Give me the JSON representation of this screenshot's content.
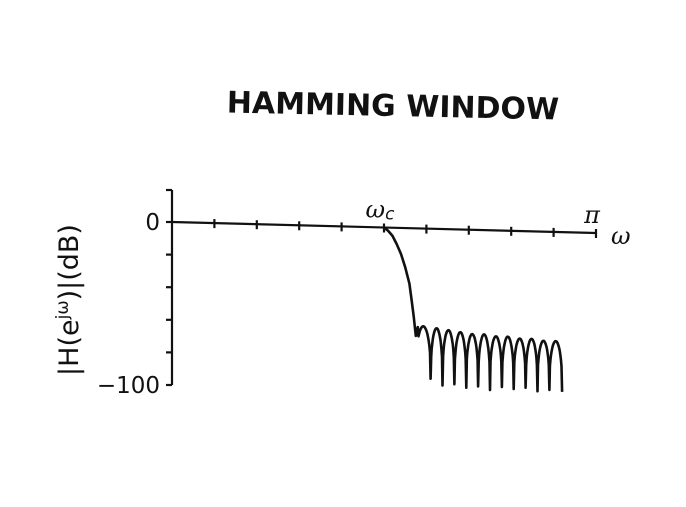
{
  "chart_data": {
    "type": "line",
    "title": "HAMMING WINDOW",
    "ylabel": "|H(e^{jω})|(dB)",
    "ylabel_parts": {
      "pre": "|H(e",
      "sup": "jω",
      "post": ")|(dB)"
    },
    "xlabel": "ω",
    "x_ticks_labeled": [
      {
        "value": 0.5,
        "label": "ω",
        "subscript": "c"
      },
      {
        "value": 1.0,
        "label": "π"
      }
    ],
    "y_ticks_labeled": [
      {
        "value": 0,
        "label": "0"
      },
      {
        "value": -100,
        "label": "−100"
      }
    ],
    "x_minor_ticks": [
      0.1,
      0.2,
      0.3,
      0.4,
      0.5,
      0.6,
      0.7,
      0.8,
      0.9,
      1.0
    ],
    "y_minor_ticks": [
      -20,
      -40,
      -60,
      -80
    ],
    "xlim": [
      0,
      1.0
    ],
    "ylim": [
      -100,
      0
    ],
    "x_units": "fraction of π",
    "series": [
      {
        "passband": {
          "from": 0,
          "to": 0.5,
          "value": 0
        },
        "transition": [
          [
            0.5,
            0
          ],
          [
            0.51,
            -2
          ],
          [
            0.52,
            -5
          ],
          [
            0.53,
            -10
          ],
          [
            0.54,
            -16
          ],
          [
            0.55,
            -24
          ],
          [
            0.56,
            -34
          ],
          [
            0.565,
            -44
          ],
          [
            0.57,
            -54
          ],
          [
            0.575,
            -66
          ]
        ],
        "stopband_lobes": [
          {
            "start": 0.575,
            "end": 0.61,
            "peak": -60,
            "nullDepth": -92
          },
          {
            "start": 0.61,
            "end": 0.638,
            "peak": -61,
            "nullDepth": -96
          },
          {
            "start": 0.638,
            "end": 0.666,
            "peak": -62,
            "nullDepth": -95
          },
          {
            "start": 0.666,
            "end": 0.694,
            "peak": -63,
            "nullDepth": -97
          },
          {
            "start": 0.694,
            "end": 0.722,
            "peak": -64,
            "nullDepth": -96
          },
          {
            "start": 0.722,
            "end": 0.75,
            "peak": -64,
            "nullDepth": -98
          },
          {
            "start": 0.75,
            "end": 0.778,
            "peak": -65,
            "nullDepth": -96
          },
          {
            "start": 0.778,
            "end": 0.806,
            "peak": -65,
            "nullDepth": -97
          },
          {
            "start": 0.806,
            "end": 0.834,
            "peak": -66,
            "nullDepth": -96
          },
          {
            "start": 0.834,
            "end": 0.862,
            "peak": -66,
            "nullDepth": -98
          },
          {
            "start": 0.862,
            "end": 0.89,
            "peak": -67,
            "nullDepth": -97
          },
          {
            "start": 0.89,
            "end": 0.92,
            "peak": -67,
            "nullDepth": -98
          }
        ]
      }
    ],
    "grid": false,
    "legend": "none"
  }
}
